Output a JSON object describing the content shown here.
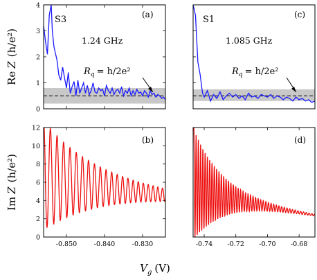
{
  "colors": {
    "re_trace": "#1a1aff",
    "im_trace": "#ee1111",
    "band": "#c8c8c8",
    "rq_line": "#000000"
  },
  "labels": {
    "ylabel_top_prefix": "Re",
    "ylabel_bottom_prefix": "Im",
    "ylabel_var": "Z",
    "ylabel_unit": "(h/e²)",
    "xlabel_var": "V",
    "xlabel_sub": "g",
    "xlabel_unit": "(V)",
    "rq_label": "R",
    "rq_sub": "q",
    "rq_eq": "= h/2e²"
  },
  "chart_data": [
    {
      "id": "a",
      "type": "line",
      "panel_tag": "(a)",
      "sample": "S3",
      "frequency": "1.24 GHz",
      "xlim": [
        -0.856,
        -0.824
      ],
      "ylim": [
        0,
        4
      ],
      "yticks": [
        0,
        1,
        2,
        3,
        4
      ],
      "xticks": [
        -0.85,
        -0.84,
        -0.83
      ],
      "band": [
        0.2,
        0.8
      ],
      "rq_value": 0.5,
      "series": [
        {
          "x": [
            -0.856,
            -0.8555,
            -0.855,
            -0.8545,
            -0.854,
            -0.8537,
            -0.8533,
            -0.853,
            -0.8525,
            -0.852,
            -0.8515,
            -0.851,
            -0.8505,
            -0.85,
            -0.8495,
            -0.849,
            -0.8485,
            -0.848,
            -0.8475,
            -0.847,
            -0.8465,
            -0.846,
            -0.8455,
            -0.845,
            -0.8445,
            -0.844,
            -0.8435,
            -0.843,
            -0.8425,
            -0.842,
            -0.8415,
            -0.841,
            -0.8405,
            -0.84,
            -0.8395,
            -0.839,
            -0.8385,
            -0.838,
            -0.8375,
            -0.837,
            -0.8365,
            -0.836,
            -0.8355,
            -0.835,
            -0.8345,
            -0.834,
            -0.8335,
            -0.833,
            -0.8325,
            -0.832,
            -0.8315,
            -0.831,
            -0.8305,
            -0.83,
            -0.8295,
            -0.829,
            -0.8285,
            -0.828,
            -0.8275,
            -0.827,
            -0.8265,
            -0.826,
            -0.8255,
            -0.825,
            -0.8245,
            -0.824
          ],
          "y": [
            3.2,
            2.6,
            2.1,
            3.6,
            4.0,
            3.0,
            2.4,
            2.2,
            1.9,
            1.3,
            1.1,
            1.6,
            1.2,
            0.8,
            1.4,
            0.6,
            0.85,
            1.05,
            0.5,
            1.1,
            0.6,
            0.8,
            1.0,
            0.6,
            0.9,
            0.55,
            0.7,
            1.0,
            0.65,
            0.6,
            0.8,
            0.7,
            0.75,
            0.5,
            0.9,
            0.7,
            0.6,
            0.8,
            0.55,
            0.7,
            0.75,
            0.6,
            0.85,
            0.5,
            0.7,
            0.6,
            0.8,
            0.5,
            0.7,
            0.55,
            0.75,
            0.6,
            0.65,
            0.5,
            0.7,
            0.6,
            0.45,
            0.7,
            0.55,
            0.6,
            0.45,
            0.55,
            0.5,
            0.4,
            0.45,
            0.35
          ]
        }
      ]
    },
    {
      "id": "b",
      "type": "line",
      "panel_tag": "(b)",
      "xlim": [
        -0.856,
        -0.824
      ],
      "ylim": [
        0,
        12
      ],
      "yticks": [
        0,
        2,
        4,
        6,
        8,
        10,
        12
      ],
      "xticks": [
        -0.85,
        -0.84,
        -0.83
      ],
      "xticklabels": [
        "-0.850",
        "-0.840",
        "-0.830"
      ],
      "osc": {
        "x_start": -0.856,
        "x_end": -0.824,
        "center_start": 7.0,
        "center_end": 4.6,
        "amp_start": 6.0,
        "amp_end": 0.7,
        "period_start": 0.0018,
        "period_end": 0.0012
      }
    },
    {
      "id": "c",
      "type": "line",
      "panel_tag": "(c)",
      "sample": "S1",
      "frequency": "1.085 GHz",
      "xlim": [
        -0.747,
        -0.67
      ],
      "ylim": [
        0,
        4
      ],
      "band": [
        0.3,
        0.75
      ],
      "rq_value": 0.5,
      "series": [
        {
          "x": [
            -0.747,
            -0.7455,
            -0.744,
            -0.7425,
            -0.7415,
            -0.741,
            -0.74,
            -0.738,
            -0.736,
            -0.734,
            -0.732,
            -0.73,
            -0.728,
            -0.726,
            -0.724,
            -0.722,
            -0.72,
            -0.718,
            -0.716,
            -0.714,
            -0.712,
            -0.71,
            -0.708,
            -0.706,
            -0.704,
            -0.702,
            -0.7,
            -0.698,
            -0.696,
            -0.694,
            -0.692,
            -0.69,
            -0.688,
            -0.686,
            -0.684,
            -0.682,
            -0.68,
            -0.678,
            -0.676,
            -0.674,
            -0.672,
            -0.67
          ],
          "y": [
            4.0,
            3.6,
            1.8,
            1.3,
            0.8,
            0.6,
            0.45,
            0.7,
            0.3,
            0.55,
            0.4,
            0.65,
            0.35,
            0.5,
            0.6,
            0.45,
            0.55,
            0.4,
            0.5,
            0.35,
            0.6,
            0.45,
            0.5,
            0.4,
            0.55,
            0.5,
            0.45,
            0.55,
            0.4,
            0.5,
            0.45,
            0.35,
            0.45,
            0.4,
            0.3,
            0.45,
            0.35,
            0.4,
            0.3,
            0.35,
            0.25,
            0.3
          ]
        }
      ]
    },
    {
      "id": "d",
      "type": "line",
      "panel_tag": "(d)",
      "xlim": [
        -0.747,
        -0.67
      ],
      "ylim": [
        0,
        12
      ],
      "xticks": [
        -0.74,
        -0.72,
        -0.7,
        -0.68
      ],
      "xticklabels": [
        "-0.74",
        "-0.72",
        "-0.70",
        "-0.68"
      ],
      "osc": {
        "x_start": -0.7465,
        "x_end": -0.67,
        "center_start": 6.0,
        "center_end": 2.4,
        "amp_start": 6.0,
        "amp_end": 0.1,
        "period_start": 0.0014,
        "period_end": 0.0018
      }
    }
  ]
}
